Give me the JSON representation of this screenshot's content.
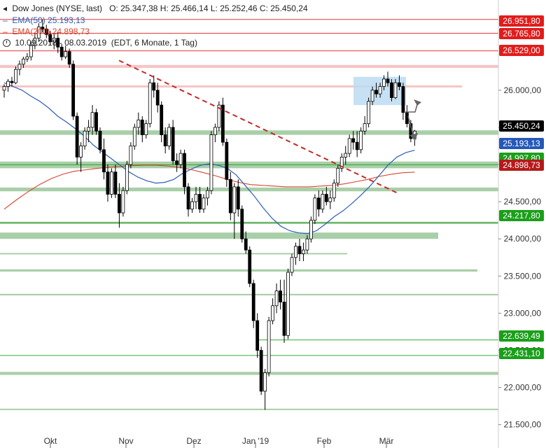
{
  "header": {
    "instrument": "Dow Jones (NYSE, last)",
    "ohlc": "O: 25.347,38   H: 25.466,14   L: 25.252,46   C: 25.450,24",
    "ema50_label": "EMA(50)",
    "ema50_value": "25.193,13",
    "ema200_label": "EMA(200)",
    "ema200_value": "24.898,73",
    "range": "10.09.2018 - 08.03.2019",
    "settings": "(EDT, 6 Monate, 1 Tag)"
  },
  "chart_data": {
    "type": "candlestick",
    "x_ticks": [
      "Okt",
      "Nov",
      "Dez",
      "Jan '19",
      "Feb",
      "Mär"
    ],
    "y_ticks": [
      "21.500,00",
      "22.000,00",
      "22.500,00",
      "23.000,00",
      "23.500,00",
      "24.000,00",
      "24.500,00",
      "25.000,00",
      "25.500,00",
      "26.000,00"
    ],
    "y_tick_values": [
      21500,
      22000,
      22500,
      23000,
      23500,
      24000,
      24500,
      25000,
      25500,
      26000
    ],
    "ylim": [
      21450,
      26950
    ],
    "colors": {
      "up": "#ffffff",
      "down": "#000000",
      "ema50": "#2b5fb8",
      "ema200": "#d8452e",
      "support": "#a9cfa9",
      "resistance": "#f6c5c5",
      "red_tag": "#e21c1c",
      "green_tag": "#1a9f1a",
      "black_tag": "#000000",
      "blue_tag": "#2458b9",
      "dark_red_tag": "#b51a1a",
      "trendline": "#c22a2a",
      "zone": "#bcdcf2"
    },
    "price_tags": [
      {
        "text": "26.951,80",
        "value": 26951.8,
        "color": "red"
      },
      {
        "text": "26.765,80",
        "value": 26765.8,
        "color": "red"
      },
      {
        "text": "26.529,00",
        "value": 26529.0,
        "color": "red"
      },
      {
        "text": "25.450,24",
        "value": 25450.24,
        "color": "black"
      },
      {
        "text": "25.193,13",
        "value": 25193.13,
        "color": "blue"
      },
      {
        "text": "24.997,80",
        "value": 24997.8,
        "color": "green"
      },
      {
        "text": "24.898,73",
        "value": 24898.73,
        "color": "dark_red"
      },
      {
        "text": "24.217,80",
        "value": 24217.8,
        "color": "green"
      },
      {
        "text": "22.639,49",
        "value": 22639.49,
        "color": "green"
      },
      {
        "text": "22.431,10",
        "value": 22431.1,
        "color": "green"
      }
    ],
    "candles": [
      [
        26000,
        26080,
        25900,
        26050
      ],
      [
        26050,
        26150,
        25980,
        26120
      ],
      [
        26120,
        26180,
        26050,
        26100
      ],
      [
        26100,
        26320,
        26080,
        26280
      ],
      [
        26280,
        26400,
        26200,
        26350
      ],
      [
        26350,
        26450,
        26300,
        26420
      ],
      [
        26420,
        26500,
        26380,
        26450
      ],
      [
        26450,
        26650,
        26400,
        26600
      ],
      [
        26600,
        26750,
        26550,
        26700
      ],
      [
        26700,
        26900,
        26650,
        26850
      ],
      [
        26850,
        26950,
        26780,
        26820
      ],
      [
        26820,
        26880,
        26700,
        26750
      ],
      [
        26750,
        26800,
        26600,
        26650
      ],
      [
        26650,
        26760,
        26550,
        26700
      ],
      [
        26700,
        26780,
        26500,
        26580
      ],
      [
        26580,
        26620,
        26400,
        26450
      ],
      [
        26450,
        26600,
        26420,
        26520
      ],
      [
        26520,
        26560,
        26300,
        26350
      ],
      [
        26350,
        26400,
        25600,
        25650
      ],
      [
        25650,
        25700,
        25000,
        25100
      ],
      [
        25100,
        25300,
        24900,
        25250
      ],
      [
        25250,
        25500,
        25200,
        25450
      ],
      [
        25450,
        25600,
        25300,
        25500
      ],
      [
        25500,
        25800,
        25400,
        25700
      ],
      [
        25700,
        25750,
        25400,
        25450
      ],
      [
        25450,
        25500,
        25150,
        25200
      ],
      [
        25200,
        25350,
        24800,
        24900
      ],
      [
        24900,
        25000,
        24500,
        24600
      ],
      [
        24600,
        24950,
        24550,
        24900
      ],
      [
        24900,
        25000,
        24550,
        24600
      ],
      [
        24600,
        24750,
        24150,
        24350
      ],
      [
        24350,
        24700,
        24300,
        24650
      ],
      [
        24650,
        25050,
        24600,
        25000
      ],
      [
        25000,
        25300,
        24950,
        25250
      ],
      [
        25250,
        25550,
        25200,
        25500
      ],
      [
        25500,
        25700,
        25400,
        25600
      ],
      [
        25600,
        25650,
        25300,
        25400
      ],
      [
        25400,
        25600,
        25350,
        25550
      ],
      [
        25550,
        26150,
        25500,
        26100
      ],
      [
        26100,
        26200,
        25900,
        26000
      ],
      [
        26000,
        26100,
        25700,
        25800
      ],
      [
        25800,
        25850,
        25300,
        25400
      ],
      [
        25400,
        25500,
        25150,
        25250
      ],
      [
        25250,
        25550,
        25200,
        25500
      ],
      [
        25500,
        25600,
        25000,
        25050
      ],
      [
        25050,
        25150,
        24900,
        25000
      ],
      [
        25000,
        25200,
        24950,
        25150
      ],
      [
        25150,
        25200,
        24600,
        24700
      ],
      [
        24700,
        24750,
        24300,
        24400
      ],
      [
        24400,
        24550,
        24350,
        24500
      ],
      [
        24500,
        24700,
        24400,
        24600
      ],
      [
        24600,
        24700,
        24350,
        24400
      ],
      [
        24400,
        24600,
        24350,
        24550
      ],
      [
        24550,
        24700,
        24450,
        24650
      ],
      [
        24650,
        25450,
        24600,
        25400
      ],
      [
        25400,
        25550,
        25300,
        25500
      ],
      [
        25500,
        25850,
        25450,
        25800
      ],
      [
        25800,
        25900,
        25250,
        25300
      ],
      [
        25300,
        25350,
        24700,
        24800
      ],
      [
        24800,
        24900,
        24250,
        24350
      ],
      [
        24350,
        24750,
        24000,
        24700
      ],
      [
        24700,
        24800,
        24300,
        24400
      ],
      [
        24400,
        24450,
        23950,
        24000
      ],
      [
        24000,
        24100,
        23800,
        23850
      ],
      [
        23850,
        23900,
        23350,
        23400
      ],
      [
        23400,
        23450,
        22800,
        22900
      ],
      [
        22900,
        23000,
        22400,
        22500
      ],
      [
        22500,
        22550,
        21900,
        21950
      ],
      [
        21950,
        22250,
        21700,
        22200
      ],
      [
        22200,
        22950,
        22150,
        22900
      ],
      [
        22900,
        23200,
        22850,
        23100
      ],
      [
        23100,
        23400,
        23000,
        23300
      ],
      [
        23300,
        23450,
        23050,
        23150
      ],
      [
        23150,
        23450,
        22600,
        22700
      ],
      [
        22700,
        23600,
        22650,
        23550
      ],
      [
        23550,
        23800,
        23500,
        23750
      ],
      [
        23750,
        23950,
        23650,
        23900
      ],
      [
        23900,
        24000,
        23700,
        23800
      ],
      [
        23800,
        23950,
        23700,
        23850
      ],
      [
        23850,
        24050,
        23800,
        24000
      ],
      [
        24000,
        24300,
        23950,
        24250
      ],
      [
        24250,
        24600,
        24200,
        24550
      ],
      [
        24550,
        24650,
        24300,
        24400
      ],
      [
        24400,
        24650,
        24350,
        24600
      ],
      [
        24600,
        24700,
        24450,
        24500
      ],
      [
        24500,
        24650,
        24400,
        24550
      ],
      [
        24550,
        24800,
        24500,
        24750
      ],
      [
        24750,
        25000,
        24700,
        24950
      ],
      [
        24950,
        25150,
        24900,
        25100
      ],
      [
        25100,
        25250,
        25000,
        25150
      ],
      [
        25150,
        25400,
        25100,
        25350
      ],
      [
        25350,
        25450,
        25200,
        25300
      ],
      [
        25300,
        25450,
        25100,
        25200
      ],
      [
        25200,
        25500,
        25150,
        25450
      ],
      [
        25450,
        25650,
        25400,
        25550
      ],
      [
        25550,
        25900,
        25500,
        25850
      ],
      [
        25850,
        26050,
        25800,
        26000
      ],
      [
        26000,
        26100,
        25900,
        25950
      ],
      [
        25950,
        26100,
        25900,
        26050
      ],
      [
        26050,
        26200,
        26000,
        26150
      ],
      [
        26150,
        26250,
        26050,
        26100
      ],
      [
        26100,
        26150,
        25850,
        25900
      ],
      [
        25900,
        26150,
        25880,
        26100
      ],
      [
        26100,
        26200,
        26000,
        26050
      ],
      [
        26050,
        26100,
        25600,
        25700
      ],
      [
        25700,
        25800,
        25500,
        25550
      ],
      [
        25550,
        25600,
        25300,
        25350
      ],
      [
        25347,
        25466,
        25252,
        25450
      ]
    ],
    "ema50": [
      26100,
      26050,
      26000,
      25920,
      25850,
      25760,
      25650,
      25570,
      25480,
      25380,
      25260,
      25170,
      25080,
      24990,
      24900,
      24830,
      24780,
      24750,
      24760,
      24800,
      24880,
      24940,
      24990,
      25010,
      24990,
      24950,
      24860,
      24720,
      24580,
      24420,
      24280,
      24170,
      24110,
      24080,
      24070,
      24110,
      24200,
      24300,
      24380,
      24480,
      24590,
      24710,
      24850,
      24990,
      25100,
      25160,
      25193
    ],
    "ema200": [
      24400,
      24520,
      24630,
      24730,
      24810,
      24870,
      24910,
      24930,
      24950,
      24965,
      24975,
      24985,
      24990,
      24990,
      24980,
      24960,
      24930,
      24890,
      24850,
      24800,
      24760,
      24730,
      24720,
      24710,
      24700,
      24700,
      24700,
      24710,
      24720,
      24740,
      24770,
      24800,
      24840,
      24870,
      24890,
      24898
    ],
    "support_zones": [
      {
        "from": 25400,
        "to": 25460
      },
      {
        "from": 24950,
        "to": 25040
      },
      {
        "from": 24640,
        "to": 24690
      },
      {
        "from": 24200,
        "to": 24230
      },
      {
        "from": 24000,
        "to": 24085
      },
      {
        "from": 23800,
        "to": 23810
      },
      {
        "from": 23560,
        "to": 23590
      },
      {
        "from": 23240,
        "to": 23260
      },
      {
        "from": 22170,
        "to": 22210
      },
      {
        "from": 21700,
        "to": 21715
      }
    ],
    "resistance_zones": [
      {
        "from": 26300,
        "to": 26340
      },
      {
        "from": 26045,
        "to": 26065
      }
    ],
    "trendline": {
      "from": [
        26400,
        "Okt"
      ],
      "to": [
        24620,
        "Mär"
      ]
    },
    "highlight_zone": {
      "from": 25800,
      "to": 26180
    },
    "grid": false
  }
}
